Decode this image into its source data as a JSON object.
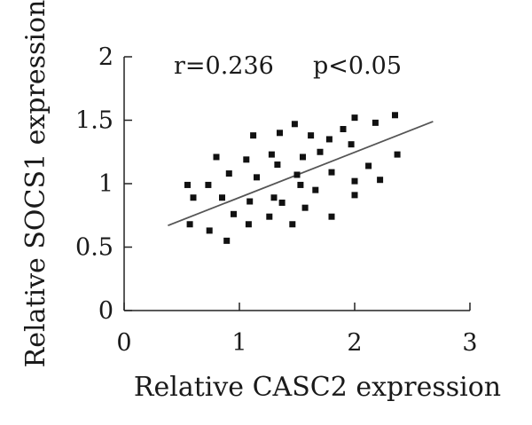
{
  "chart_data": {
    "type": "scatter",
    "xlabel": "Relative CASC2 expression",
    "ylabel": "Relative SOCS1 expression",
    "xlim": [
      0,
      3
    ],
    "ylim": [
      0,
      2
    ],
    "x_ticks": [
      "0",
      "1",
      "2",
      "3"
    ],
    "y_ticks": [
      "0",
      "0.5",
      "1",
      "1.5",
      "2"
    ],
    "annotations": {
      "r": "r=0.236",
      "p": "p<0.05"
    },
    "points": [
      {
        "x": 0.55,
        "y": 0.99
      },
      {
        "x": 0.57,
        "y": 0.68
      },
      {
        "x": 0.6,
        "y": 0.89
      },
      {
        "x": 0.73,
        "y": 0.99
      },
      {
        "x": 0.74,
        "y": 0.63
      },
      {
        "x": 0.8,
        "y": 1.21
      },
      {
        "x": 0.85,
        "y": 0.89
      },
      {
        "x": 0.89,
        "y": 0.55
      },
      {
        "x": 0.91,
        "y": 1.08
      },
      {
        "x": 0.95,
        "y": 0.76
      },
      {
        "x": 1.06,
        "y": 1.19
      },
      {
        "x": 1.08,
        "y": 0.68
      },
      {
        "x": 1.09,
        "y": 0.86
      },
      {
        "x": 1.12,
        "y": 1.38
      },
      {
        "x": 1.15,
        "y": 1.05
      },
      {
        "x": 1.26,
        "y": 0.74
      },
      {
        "x": 1.28,
        "y": 1.23
      },
      {
        "x": 1.3,
        "y": 0.89
      },
      {
        "x": 1.33,
        "y": 1.15
      },
      {
        "x": 1.35,
        "y": 1.4
      },
      {
        "x": 1.37,
        "y": 0.85
      },
      {
        "x": 1.46,
        "y": 0.68
      },
      {
        "x": 1.48,
        "y": 1.47
      },
      {
        "x": 1.5,
        "y": 1.07
      },
      {
        "x": 1.53,
        "y": 0.99
      },
      {
        "x": 1.55,
        "y": 1.21
      },
      {
        "x": 1.57,
        "y": 0.81
      },
      {
        "x": 1.62,
        "y": 1.38
      },
      {
        "x": 1.66,
        "y": 0.95
      },
      {
        "x": 1.7,
        "y": 1.25
      },
      {
        "x": 1.78,
        "y": 1.35
      },
      {
        "x": 1.8,
        "y": 1.09
      },
      {
        "x": 1.8,
        "y": 0.74
      },
      {
        "x": 1.9,
        "y": 1.43
      },
      {
        "x": 1.97,
        "y": 1.31
      },
      {
        "x": 2.0,
        "y": 1.52
      },
      {
        "x": 2.0,
        "y": 1.02
      },
      {
        "x": 2.0,
        "y": 0.91
      },
      {
        "x": 2.12,
        "y": 1.14
      },
      {
        "x": 2.18,
        "y": 1.48
      },
      {
        "x": 2.22,
        "y": 1.03
      },
      {
        "x": 2.35,
        "y": 1.54
      },
      {
        "x": 2.37,
        "y": 1.23
      }
    ],
    "trendline": {
      "x": [
        0.38,
        2.68
      ],
      "y": [
        0.67,
        1.49
      ]
    },
    "grid": false,
    "legend": "none"
  }
}
